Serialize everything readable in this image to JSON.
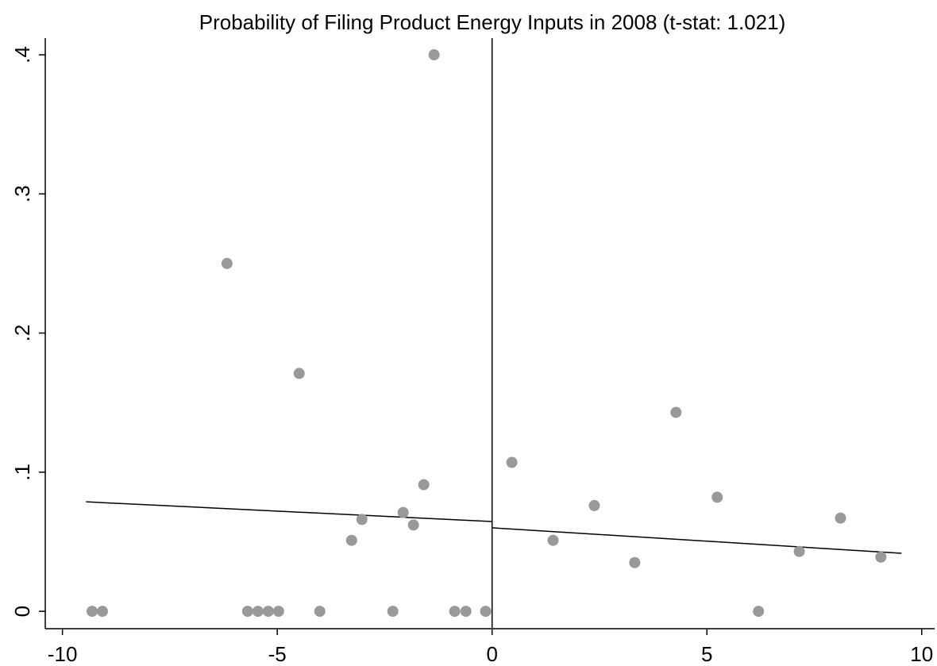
{
  "chart_data": {
    "type": "scatter",
    "title": "Probability of Filing Product Energy Inputs in 2008 (t-stat: 1.021)",
    "xlim": [
      -10.4,
      10.3
    ],
    "ylim": [
      -0.0125,
      0.412
    ],
    "xticks": [
      -10,
      -5,
      0,
      5,
      10
    ],
    "yticks": [
      0,
      {
        "value": 0.1,
        "label": ".1"
      },
      {
        "value": 0.2,
        "label": ".2"
      },
      {
        "value": 0.3,
        "label": ".3"
      },
      {
        "value": 0.4,
        "label": ".4"
      }
    ],
    "cutoff": 0,
    "series": [
      {
        "color": "#999999",
        "x": [
          -9.31,
          -9.07,
          -6.17,
          -5.69,
          -5.45,
          -5.21,
          -4.97,
          -4.49,
          -4.01,
          -3.27,
          -3.03,
          -2.31,
          -2.07,
          -1.83,
          -1.59,
          -1.35,
          -0.87,
          -0.61,
          -0.15,
          0.46,
          1.42,
          2.38,
          3.32,
          4.28,
          5.24,
          6.2,
          7.15,
          8.11,
          9.05
        ],
        "values": [
          0,
          0,
          0.25,
          0,
          0,
          0,
          0,
          0.171,
          0,
          0.051,
          0.066,
          0,
          0.071,
          0.062,
          0.091,
          0.4,
          0,
          0,
          0,
          0.107,
          0.051,
          0.076,
          0.035,
          0.143,
          0.082,
          0,
          0.043,
          0.067,
          0.039
        ]
      }
    ],
    "fit_lines": [
      {
        "color": "#000000",
        "x": [
          -9.45,
          0
        ],
        "values": [
          0.0787,
          0.0645
        ]
      },
      {
        "color": "#000000",
        "x": [
          0,
          9.53
        ],
        "values": [
          0.06,
          0.0417
        ]
      }
    ]
  }
}
